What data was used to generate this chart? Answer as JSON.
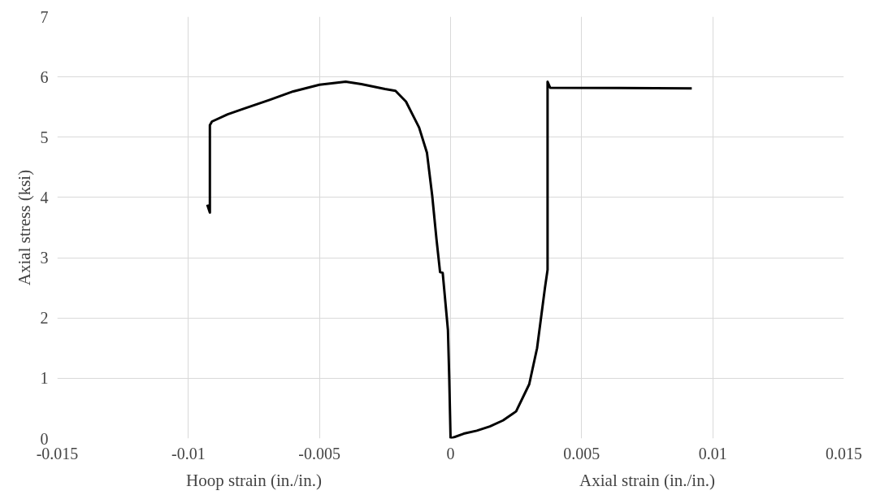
{
  "chart_data": {
    "type": "line",
    "ylabel": "Axial stress (ksi)",
    "annotations": [
      "Hoop strain (in./in.)",
      "Axial strain (in./in.)"
    ],
    "xlim": [
      -0.015,
      0.015
    ],
    "xticks": [
      -0.015,
      -0.01,
      -0.005,
      0,
      0.005,
      0.01,
      0.015
    ],
    "ylim": [
      0,
      7
    ],
    "yticks": [
      0,
      1,
      2,
      3,
      4,
      5,
      6,
      7
    ],
    "grid": true,
    "marker": "none",
    "line_style": "solid",
    "series": [
      {
        "color": "#000000",
        "x": [
          0,
          -5e-05,
          -0.0001,
          -0.0003,
          -0.0004,
          -0.00054,
          -0.0007,
          -0.0009,
          -0.0012,
          -0.0017,
          -0.0021,
          -0.0025,
          -0.0034,
          -0.004,
          -0.005,
          -0.006,
          -0.0069,
          -0.0079,
          -0.0085,
          -0.0091,
          -0.00918,
          -0.00918,
          -0.00928
        ],
        "values": [
          0,
          1.0,
          1.8,
          2.75,
          2.76,
          3.32,
          4.03,
          4.74,
          5.16,
          5.59,
          5.77,
          5.8,
          5.88,
          5.92,
          5.87,
          5.76,
          5.62,
          5.47,
          5.38,
          5.26,
          5.2,
          3.75,
          3.88
        ]
      },
      {
        "color": "#000000",
        "x": [
          0,
          0.0005,
          0.001,
          0.0015,
          0.002,
          0.0025,
          0.003,
          0.0033,
          0.0036,
          0.0037,
          0.0037,
          0.0038,
          0.0092
        ],
        "values": [
          0,
          0.08,
          0.13,
          0.2,
          0.3,
          0.45,
          0.9,
          1.5,
          2.5,
          2.8,
          5.92,
          5.82,
          5.81
        ]
      }
    ]
  }
}
